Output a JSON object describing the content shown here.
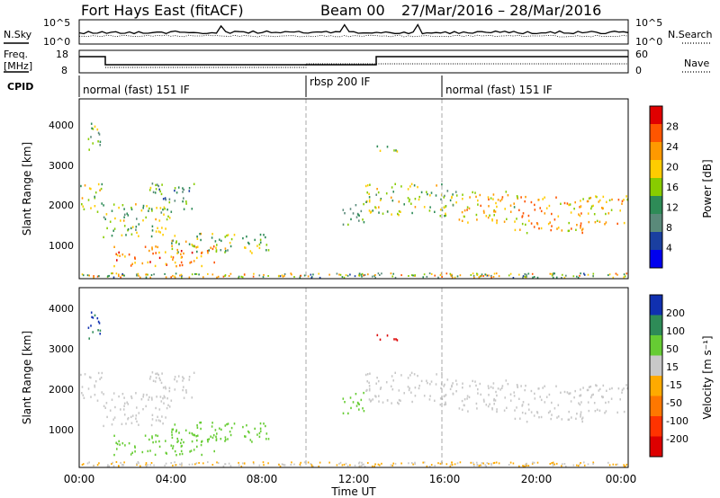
{
  "header": {
    "title": "Fort Hays East (fitACF)",
    "beam": "Beam 00",
    "dates": "27/Mar/2016 – 28/Mar/2016"
  },
  "noise_panel": {
    "left_label": "N.Sky",
    "right_label": "N.Search",
    "left_ticks": [
      "10^5",
      "10^0"
    ],
    "right_ticks": [
      "10^5",
      "10^0"
    ]
  },
  "freq_panel": {
    "left_label": "Freq.",
    "left_unit": "[MHz]",
    "right_label": "Nave",
    "left_ticks": [
      "18",
      "8"
    ],
    "right_ticks": [
      "60",
      "0"
    ]
  },
  "cpid": {
    "label": "CPID",
    "segments": [
      {
        "name": "normal (fast) 151 IF",
        "start_hour": 0,
        "end_hour": 10
      },
      {
        "name": "rbsp 200 IF",
        "start_hour": 10,
        "end_hour": 16
      },
      {
        "name": "normal (fast) 151 IF",
        "start_hour": 16,
        "end_hour": 24
      }
    ]
  },
  "time_axis": {
    "label": "Time UT",
    "ticks": [
      "00:00",
      "04:00",
      "08:00",
      "12:00",
      "16:00",
      "20:00",
      "00:00"
    ]
  },
  "power_panel": {
    "ylabel": "Slant Range [km]",
    "yticks": [
      "1000",
      "2000",
      "3000",
      "4000"
    ],
    "colorbar_label": "Power [dB]",
    "colorbar_ticks": [
      "28",
      "24",
      "20",
      "16",
      "12",
      "8",
      "4"
    ],
    "colors": [
      "#e00000",
      "#ff5500",
      "#ff9900",
      "#ffcc00",
      "#88cc00",
      "#2e8b57",
      "#5a8a7a",
      "#1a3fa0",
      "#0000ee"
    ]
  },
  "velocity_panel": {
    "ylabel": "Slant Range [km]",
    "yticks": [
      "1000",
      "2000",
      "3000",
      "4000"
    ],
    "colorbar_label": "Velocity [m s⁻¹]",
    "colorbar_ticks": [
      "200",
      "100",
      "50",
      "15",
      "-15",
      "-50",
      "-100",
      "-200"
    ],
    "colors": [
      "#1030b0",
      "#2e8b57",
      "#66cc33",
      "#c8c8c8",
      "#ffaa00",
      "#ff7700",
      "#ff3300",
      "#dd0000"
    ]
  },
  "chart_data": {
    "type": "heatmap",
    "title": "Fort Hays East (fitACF)",
    "xlabel": "Time UT",
    "ylabel": "Slant Range [km]",
    "xlim": [
      0,
      24
    ],
    "ylim": [
      180,
      4500
    ],
    "scatter_regions": [
      {
        "t0": 0.0,
        "t1": 1.0,
        "r0": 1800,
        "r1": 2500,
        "power": 16,
        "velocity": 0
      },
      {
        "t0": 0.3,
        "t1": 1.0,
        "r0": 3300,
        "r1": 4000,
        "power": 14,
        "velocity": 150
      },
      {
        "t0": 1.0,
        "t1": 4.0,
        "r0": 1200,
        "r1": 2000,
        "power": 14,
        "velocity": 0
      },
      {
        "t0": 1.5,
        "t1": 6.0,
        "r0": 500,
        "r1": 1000,
        "power": 22,
        "velocity": 30
      },
      {
        "t0": 4.0,
        "t1": 8.5,
        "r0": 800,
        "r1": 1300,
        "power": 14,
        "velocity": 30
      },
      {
        "t0": 3.0,
        "t1": 5.0,
        "r0": 1800,
        "r1": 2500,
        "power": 10,
        "velocity": 0
      },
      {
        "t0": 11.5,
        "t1": 12.5,
        "r0": 1400,
        "r1": 2000,
        "power": 10,
        "velocity": 30
      },
      {
        "t0": 13.0,
        "t1": 14.0,
        "r0": 3200,
        "r1": 3400,
        "power": 14,
        "velocity": -200
      },
      {
        "t0": 12.5,
        "t1": 16.5,
        "r0": 1700,
        "r1": 2500,
        "power": 14,
        "velocity": 0
      },
      {
        "t0": 16.5,
        "t1": 19.0,
        "r0": 1500,
        "r1": 2300,
        "power": 18,
        "velocity": 0
      },
      {
        "t0": 19.0,
        "t1": 22.0,
        "r0": 1300,
        "r1": 2200,
        "power": 20,
        "velocity": 0
      },
      {
        "t0": 22.0,
        "t1": 24.0,
        "r0": 1500,
        "r1": 2200,
        "power": 18,
        "velocity": 0
      }
    ]
  }
}
